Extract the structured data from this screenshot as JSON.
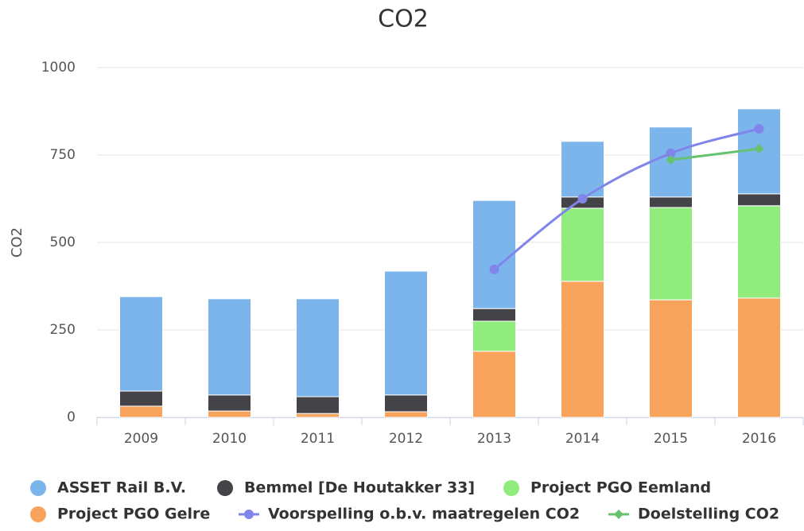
{
  "chart_data": {
    "type": "bar",
    "title": "CO2",
    "y_label": "CO2",
    "categories": [
      "2009",
      "2010",
      "2011",
      "2012",
      "2013",
      "2014",
      "2015",
      "2016"
    ],
    "ylim": [
      0,
      1000
    ],
    "yticks": [
      0,
      250,
      500,
      750,
      1000
    ],
    "grid": true,
    "stacked": true,
    "legend": "bottom",
    "series": [
      {
        "name": "ASSET Rail B.V.",
        "type": "bar",
        "color": "#7cb5ec",
        "values": [
          270,
          275,
          280,
          354,
          309,
          159,
          200,
          243
        ]
      },
      {
        "name": "Bemmel [De Houtakker 33]",
        "type": "bar",
        "color": "#434348",
        "values": [
          43,
          46,
          48,
          48,
          36,
          32,
          30,
          34
        ]
      },
      {
        "name": "Project PGO Eemland",
        "type": "bar",
        "color": "#90ed7d",
        "values": [
          0,
          0,
          0,
          0,
          86,
          209,
          264,
          264
        ]
      },
      {
        "name": "Project PGO Gelre",
        "type": "bar",
        "color": "#f7a35c",
        "values": [
          32,
          18,
          11,
          16,
          189,
          389,
          336,
          341
        ]
      },
      {
        "name": "Voorspelling o.b.v. maatregelen CO2",
        "type": "line",
        "marker": "circle",
        "color": "#8085e9",
        "values": [
          null,
          null,
          null,
          null,
          423,
          625,
          755,
          825
        ]
      },
      {
        "name": "Doelstelling CO2",
        "type": "line",
        "marker": "diamond",
        "color": "#66c26f",
        "values": [
          null,
          null,
          null,
          null,
          null,
          null,
          736,
          768
        ]
      }
    ]
  }
}
